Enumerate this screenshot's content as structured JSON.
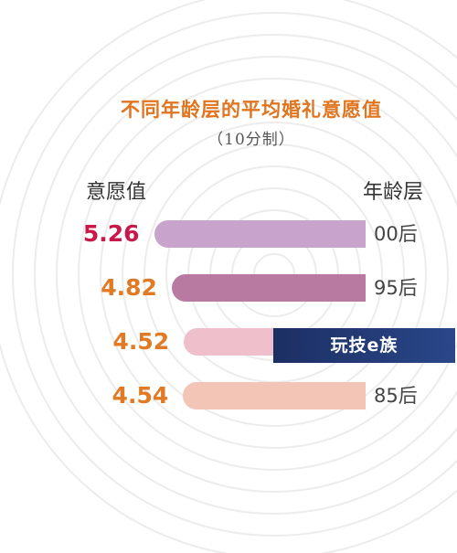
{
  "chart_data": {
    "type": "bar",
    "title": "不同年龄层的平均婚礼意愿值",
    "subtitle": "（10分制）",
    "value_axis_label": "意愿值",
    "category_axis_label": "年龄层",
    "categories": [
      "00后",
      "95后",
      "",
      "85后"
    ],
    "values": [
      5.26,
      4.82,
      4.52,
      4.54
    ],
    "value_labels": [
      "5.26",
      "4.82",
      "4.52",
      "4.54"
    ],
    "orientation": "horizontal",
    "bars_grow_from": "right",
    "scale_max": 10
  },
  "colors": {
    "title": "#e0741f",
    "value_highlight": "#c8194a",
    "value_default": "#e07a25",
    "bars": [
      "#c8a4cc",
      "#b97aa2",
      "#efbfcc",
      "#f2c5b6"
    ],
    "rings": "#ececec"
  },
  "watermark": "玩技e族"
}
